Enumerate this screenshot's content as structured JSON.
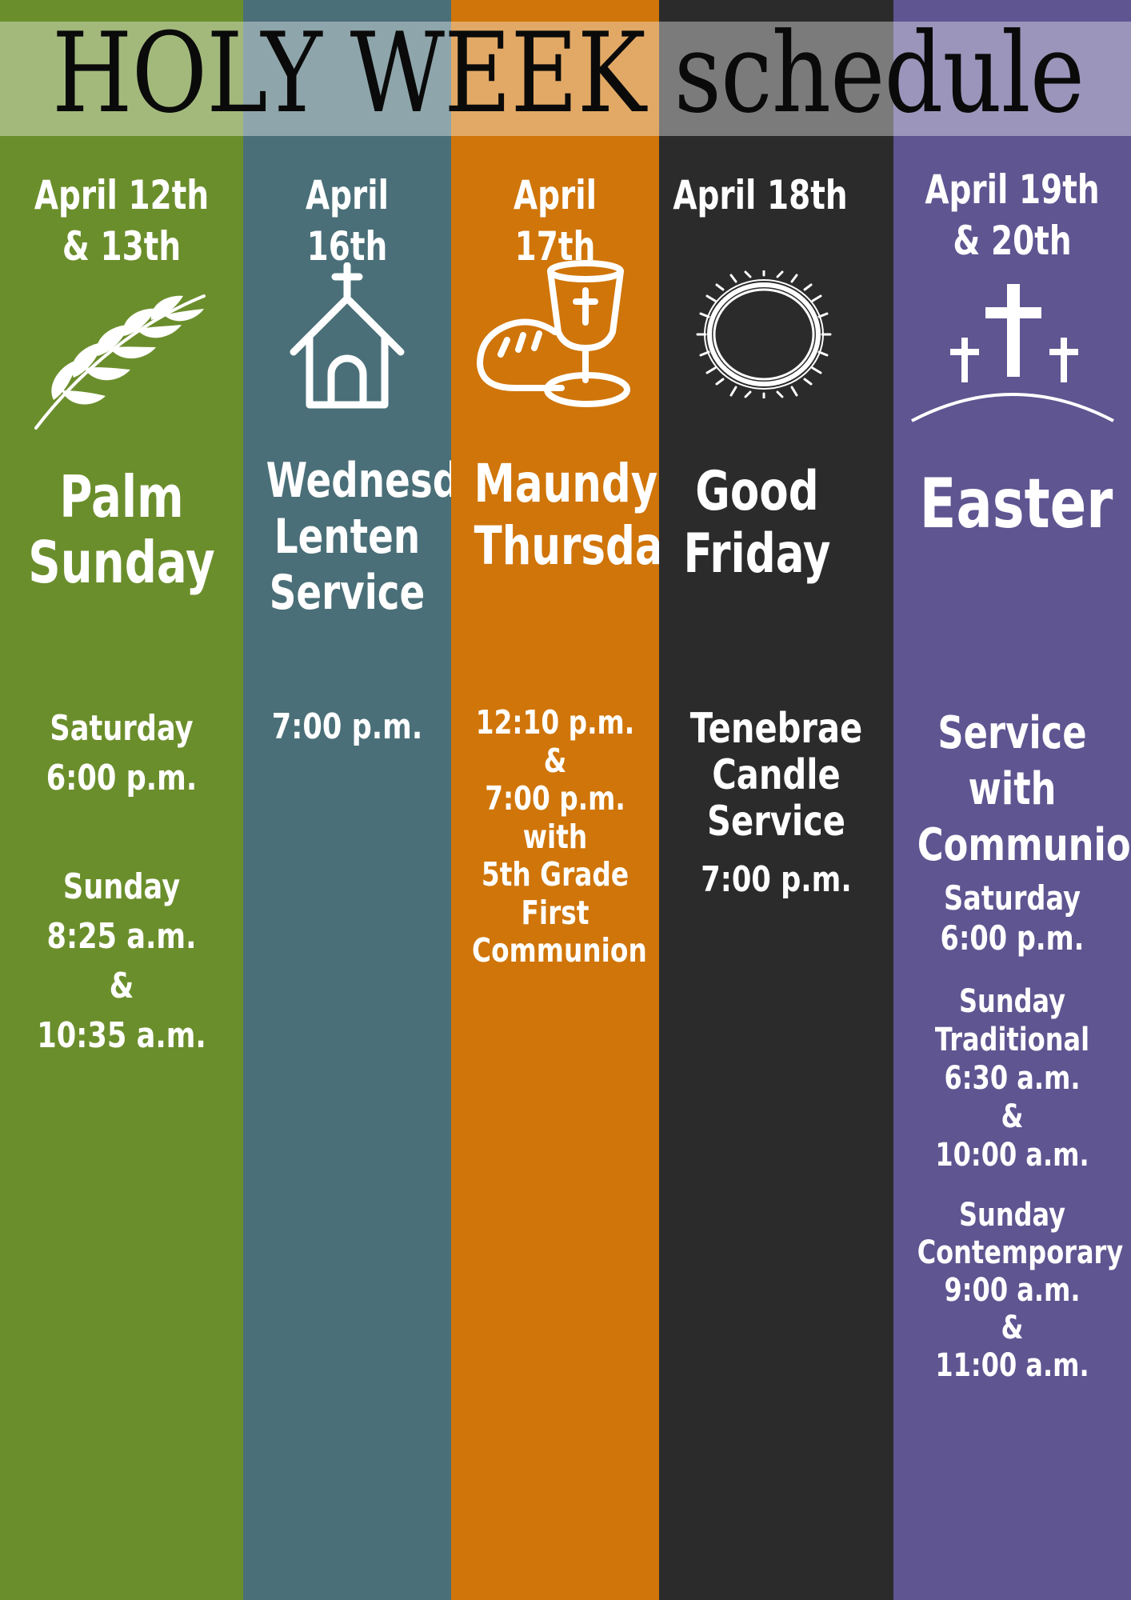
{
  "title": "HOLY WEEK schedule",
  "colors": {
    "palm": "#6b8e2c",
    "wednesday": "#4a6f78",
    "maundy": "#d07509",
    "friday": "#2b2b2b",
    "easter": "#5e5591"
  },
  "columns": [
    {
      "date": "April 12th\n& 13th",
      "icon": "palm-frond-icon",
      "name": "Palm\nSunday",
      "times": [
        "Saturday\n6:00 p.m.",
        "Sunday\n8:25 a.m.\n&\n10:35 a.m."
      ]
    },
    {
      "date": "April 16th",
      "icon": "church-icon",
      "name": "Wednesday\nLenten\nService",
      "times": [
        "7:00 p.m."
      ]
    },
    {
      "date": "April 17th",
      "icon": "bread-and-chalice-icon",
      "name": "Maundy\nThursday",
      "times": [
        "12:10 p.m.\n&\n7:00 p.m.\nwith\n5th Grade\nFirst\nCommunion"
      ]
    },
    {
      "date": "April 18th",
      "icon": "crown-of-thorns-icon",
      "name": "Good\nFriday",
      "times": [
        "Tenebrae\nCandle\nService",
        "7:00 p.m."
      ]
    },
    {
      "date": "April 19th\n& 20th",
      "icon": "three-crosses-icon",
      "name": "Easter",
      "times": [
        "Service\nwith\nCommunion",
        "Saturday\n6:00 p.m.",
        "Sunday\nTraditional\n6:30 a.m.\n&\n10:00 a.m.",
        "Sunday\nContemporary\n9:00 a.m.\n&\n11:00 a.m."
      ]
    }
  ]
}
